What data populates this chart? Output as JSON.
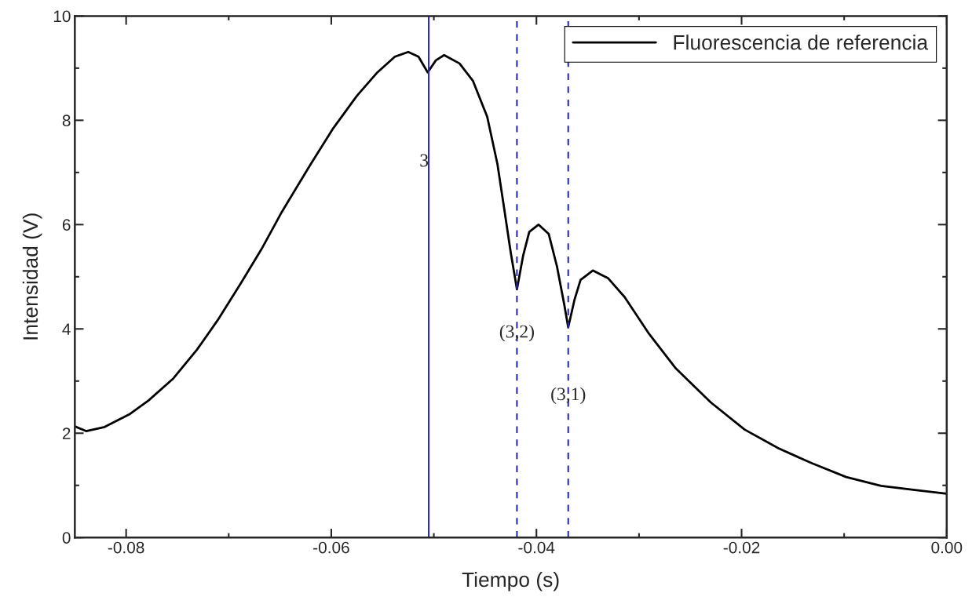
{
  "chart_data": {
    "type": "line",
    "xlabel": "Tiempo (s)",
    "ylabel": "Intensidad (V)",
    "xlim": [
      -0.085,
      0.0
    ],
    "ylim": [
      0,
      10
    ],
    "xticks": [
      {
        "value": -0.08,
        "label": "-0.08"
      },
      {
        "value": -0.06,
        "label": "-0.06"
      },
      {
        "value": -0.04,
        "label": "-0.04"
      },
      {
        "value": -0.02,
        "label": "-0.02"
      },
      {
        "value": 0.0,
        "label": "0.00"
      }
    ],
    "yticks": [
      0,
      2,
      4,
      6,
      8,
      10
    ],
    "legend": "top right",
    "grid": false,
    "marker": "none",
    "line_style": "solid",
    "series": [
      {
        "name": "Fluorescencia de referencia",
        "color": "#000000",
        "x": [
          -0.085,
          -0.0839,
          -0.0821,
          -0.0797,
          -0.0778,
          -0.0754,
          -0.0731,
          -0.0711,
          -0.0688,
          -0.0668,
          -0.0648,
          -0.0621,
          -0.0598,
          -0.0575,
          -0.0555,
          -0.0538,
          -0.0525,
          -0.0515,
          -0.0506,
          -0.0498,
          -0.049,
          -0.0475,
          -0.0462,
          -0.0448,
          -0.0438,
          -0.0432,
          -0.0425,
          -0.0419,
          -0.0413,
          -0.0407,
          -0.0398,
          -0.0388,
          -0.038,
          -0.0373,
          -0.0369,
          -0.0363,
          -0.0357,
          -0.0345,
          -0.033,
          -0.0314,
          -0.029,
          -0.0264,
          -0.023,
          -0.0197,
          -0.0164,
          -0.0131,
          -0.0098,
          -0.0064,
          -0.0031,
          0.0
        ],
        "values": [
          2.13,
          2.04,
          2.12,
          2.36,
          2.63,
          3.05,
          3.6,
          4.16,
          4.88,
          5.53,
          6.25,
          7.13,
          7.85,
          8.47,
          8.92,
          9.22,
          9.31,
          9.22,
          8.92,
          9.15,
          9.25,
          9.09,
          8.76,
          8.07,
          7.16,
          6.38,
          5.46,
          4.76,
          5.4,
          5.86,
          6.0,
          5.82,
          5.2,
          4.48,
          4.03,
          4.55,
          4.94,
          5.12,
          4.97,
          4.61,
          3.9,
          3.24,
          2.59,
          2.07,
          1.71,
          1.42,
          1.16,
          0.99,
          0.91,
          0.84
        ]
      }
    ],
    "ref_lines": [
      {
        "axis": "x",
        "value": -0.0505,
        "color": "#2a2ab8",
        "line_style": "solid"
      },
      {
        "axis": "x",
        "value": -0.0419,
        "color": "#2a2ab8",
        "line_style": "dashed"
      },
      {
        "axis": "x",
        "value": -0.0369,
        "color": "#2a2ab8",
        "line_style": "dashed"
      }
    ],
    "annotations": [
      {
        "text": "3",
        "x": -0.0505,
        "y": 7.2
      },
      {
        "text": "(3,2)",
        "x": -0.0419,
        "y": 3.92
      },
      {
        "text": "(3,1)",
        "x": -0.0369,
        "y": 2.72
      }
    ]
  }
}
